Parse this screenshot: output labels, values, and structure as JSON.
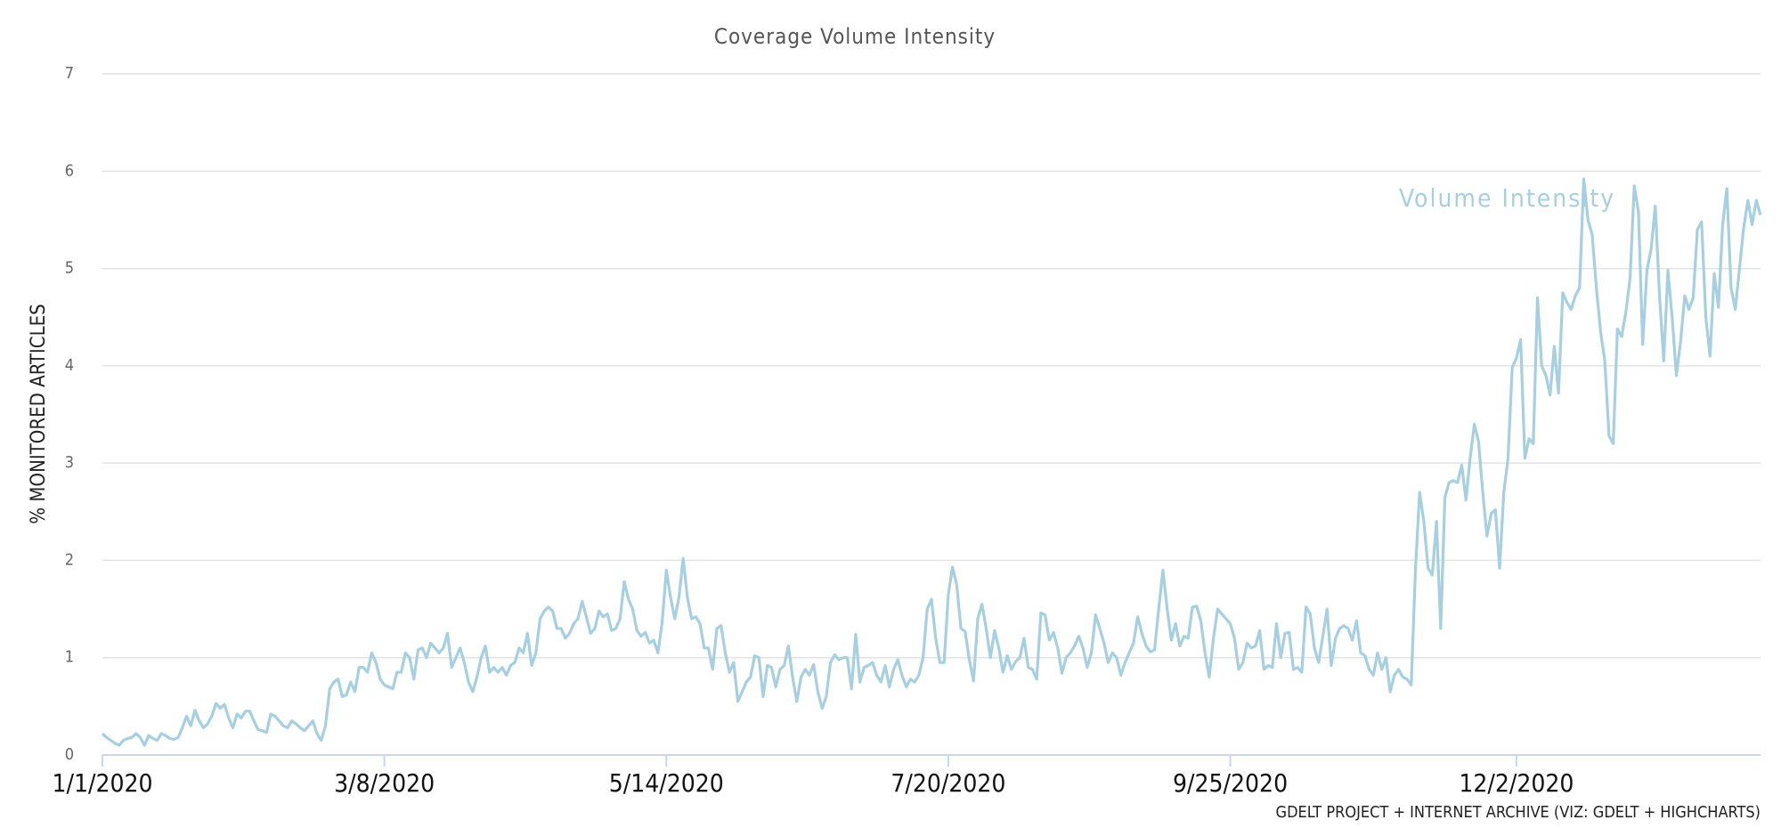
{
  "chart_data": {
    "type": "line",
    "title": "Coverage Volume Intensity",
    "y_label": "% MONITORED ARTICLES",
    "credit": "GDELT PROJECT + INTERNET ARCHIVE (VIZ: GDELT + HIGHCHARTS)",
    "xlim": [
      0,
      394
    ],
    "xticks": [
      {
        "value": 0,
        "label": "1/1/2020"
      },
      {
        "value": 67,
        "label": "3/8/2020"
      },
      {
        "value": 134,
        "label": "5/14/2020"
      },
      {
        "value": 201,
        "label": "7/20/2020"
      },
      {
        "value": 268,
        "label": "9/25/2020"
      },
      {
        "value": 336,
        "label": "12/2/2020"
      }
    ],
    "ylim": [
      0,
      7
    ],
    "yticks": [
      0,
      1,
      2,
      3,
      4,
      5,
      6,
      7
    ],
    "grid": true,
    "series": [
      {
        "name": "Volume Intensity",
        "color": "#a6cfe2",
        "values": [
          0.22,
          0.18,
          0.15,
          0.12,
          0.1,
          0.15,
          0.17,
          0.18,
          0.22,
          0.18,
          0.1,
          0.2,
          0.17,
          0.15,
          0.22,
          0.2,
          0.17,
          0.16,
          0.18,
          0.28,
          0.4,
          0.3,
          0.46,
          0.35,
          0.28,
          0.32,
          0.4,
          0.53,
          0.48,
          0.52,
          0.38,
          0.28,
          0.42,
          0.38,
          0.45,
          0.45,
          0.35,
          0.26,
          0.25,
          0.23,
          0.42,
          0.4,
          0.35,
          0.3,
          0.28,
          0.35,
          0.32,
          0.28,
          0.25,
          0.3,
          0.35,
          0.22,
          0.15,
          0.3,
          0.68,
          0.75,
          0.78,
          0.6,
          0.62,
          0.75,
          0.65,
          0.9,
          0.9,
          0.85,
          1.05,
          0.95,
          0.78,
          0.72,
          0.7,
          0.68,
          0.85,
          0.85,
          1.05,
          1.0,
          0.78,
          1.08,
          1.1,
          1.0,
          1.15,
          1.1,
          1.05,
          1.1,
          1.25,
          0.9,
          1.0,
          1.1,
          0.95,
          0.75,
          0.65,
          0.8,
          1.0,
          1.12,
          0.85,
          0.9,
          0.85,
          0.9,
          0.82,
          0.92,
          0.95,
          1.1,
          1.05,
          1.25,
          0.92,
          1.05,
          1.4,
          1.48,
          1.52,
          1.48,
          1.3,
          1.3,
          1.2,
          1.25,
          1.35,
          1.4,
          1.58,
          1.42,
          1.25,
          1.3,
          1.48,
          1.42,
          1.45,
          1.28,
          1.3,
          1.4,
          1.78,
          1.6,
          1.5,
          1.28,
          1.22,
          1.26,
          1.15,
          1.18,
          1.05,
          1.36,
          1.9,
          1.62,
          1.4,
          1.62,
          2.02,
          1.62,
          1.4,
          1.42,
          1.35,
          1.1,
          1.1,
          0.88,
          1.3,
          1.33,
          1.05,
          0.85,
          0.95,
          0.55,
          0.65,
          0.75,
          0.8,
          1.02,
          1.0,
          0.6,
          0.92,
          0.9,
          0.7,
          0.88,
          0.92,
          1.12,
          0.8,
          0.55,
          0.8,
          0.88,
          0.82,
          0.93,
          0.65,
          0.48,
          0.6,
          0.95,
          1.03,
          0.98,
          1.0,
          1.0,
          0.68,
          1.24,
          0.75,
          0.9,
          0.92,
          0.95,
          0.82,
          0.75,
          0.92,
          0.7,
          0.88,
          0.98,
          0.82,
          0.7,
          0.78,
          0.75,
          0.82,
          1.0,
          1.5,
          1.6,
          1.2,
          0.95,
          0.95,
          1.65,
          1.93,
          1.75,
          1.3,
          1.27,
          0.98,
          0.76,
          1.4,
          1.55,
          1.3,
          1.0,
          1.28,
          1.1,
          0.85,
          1.02,
          0.88,
          0.96,
          1.0,
          1.2,
          0.9,
          0.88,
          0.78,
          1.46,
          1.44,
          1.18,
          1.26,
          1.1,
          0.84,
          1.0,
          1.05,
          1.12,
          1.22,
          1.1,
          0.9,
          1.05,
          1.44,
          1.3,
          1.15,
          0.95,
          1.05,
          1.0,
          0.82,
          0.95,
          1.05,
          1.15,
          1.42,
          1.25,
          1.12,
          1.06,
          1.08,
          1.5,
          1.9,
          1.5,
          1.18,
          1.35,
          1.12,
          1.22,
          1.2,
          1.52,
          1.53,
          1.38,
          1.05,
          0.8,
          1.2,
          1.5,
          1.45,
          1.4,
          1.35,
          1.2,
          0.88,
          0.95,
          1.15,
          1.1,
          1.12,
          1.28,
          0.88,
          0.92,
          0.9,
          1.35,
          1.0,
          1.25,
          1.26,
          0.88,
          0.9,
          0.85,
          1.52,
          1.45,
          1.1,
          0.95,
          1.22,
          1.5,
          0.92,
          1.2,
          1.3,
          1.33,
          1.3,
          1.18,
          1.38,
          1.05,
          1.02,
          0.88,
          0.82,
          1.05,
          0.88,
          1.0,
          0.65,
          0.82,
          0.88,
          0.8,
          0.78,
          0.72,
          1.9,
          2.7,
          2.4,
          1.92,
          1.85,
          2.4,
          1.3,
          2.65,
          2.8,
          2.82,
          2.8,
          2.98,
          2.62,
          3.05,
          3.4,
          3.22,
          2.7,
          2.25,
          2.48,
          2.52,
          1.92,
          2.7,
          3.05,
          3.98,
          4.08,
          4.27,
          3.05,
          3.25,
          3.2,
          4.7,
          4.0,
          3.9,
          3.7,
          4.2,
          3.72,
          4.75,
          4.65,
          4.58,
          4.72,
          4.8,
          5.92,
          5.5,
          5.35,
          4.8,
          4.35,
          4.05,
          3.28,
          3.2,
          4.38,
          4.3,
          4.55,
          4.9,
          5.85,
          5.58,
          4.22,
          4.98,
          5.2,
          5.64,
          4.72,
          4.05,
          4.98,
          4.5,
          3.9,
          4.25,
          4.72,
          4.58,
          4.7,
          5.4,
          5.48,
          4.5,
          4.1,
          4.95,
          4.6,
          5.45,
          5.82,
          4.8,
          4.58,
          5.0,
          5.42,
          5.7,
          5.45,
          5.7,
          5.55
        ]
      }
    ]
  }
}
